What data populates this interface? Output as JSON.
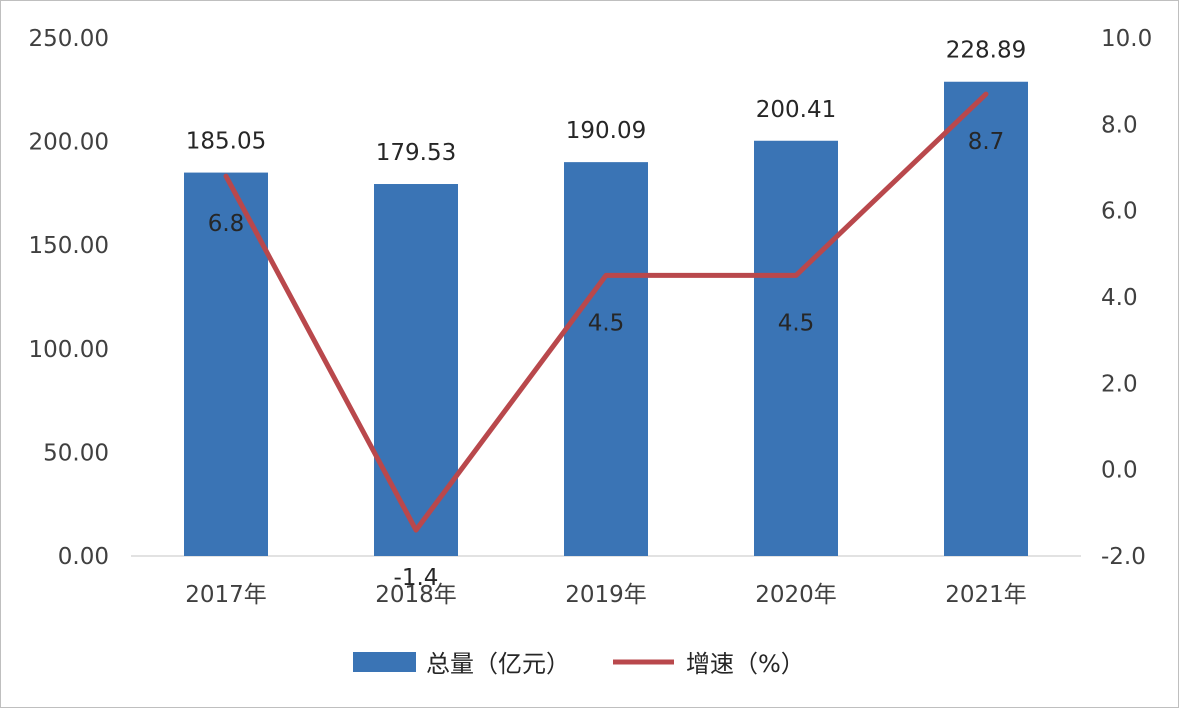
{
  "chart_data": {
    "type": "bar",
    "categories": [
      "2017年",
      "2018年",
      "2019年",
      "2020年",
      "2021年"
    ],
    "series": [
      {
        "name": "总量（亿元）",
        "type": "bar",
        "axis": "left",
        "values": [
          185.05,
          179.53,
          190.09,
          200.41,
          228.89
        ],
        "labels": [
          "185.05",
          "179.53",
          "190.09",
          "200.41",
          "228.89"
        ],
        "color": "#3a74b5"
      },
      {
        "name": "增速（%）",
        "type": "line",
        "axis": "right",
        "values": [
          6.8,
          -1.4,
          4.5,
          4.5,
          8.7
        ],
        "labels": [
          "6.8",
          "-1.4",
          "4.5",
          "4.5",
          "8.7"
        ],
        "color": "#b9484c"
      }
    ],
    "left_axis": {
      "ylim": [
        0,
        250
      ],
      "ticks": [
        0,
        50,
        100,
        150,
        200,
        250
      ],
      "tick_labels": [
        "0.00",
        "50.00",
        "100.00",
        "150.00",
        "200.00",
        "250.00"
      ]
    },
    "right_axis": {
      "ylim": [
        -2,
        10
      ],
      "ticks": [
        -2,
        0,
        2,
        4,
        6,
        8,
        10
      ],
      "tick_labels": [
        "-2.0",
        "0.0",
        "2.0",
        "4.0",
        "6.0",
        "8.0",
        "10.0"
      ]
    },
    "grid": false,
    "legend_position": "bottom"
  }
}
